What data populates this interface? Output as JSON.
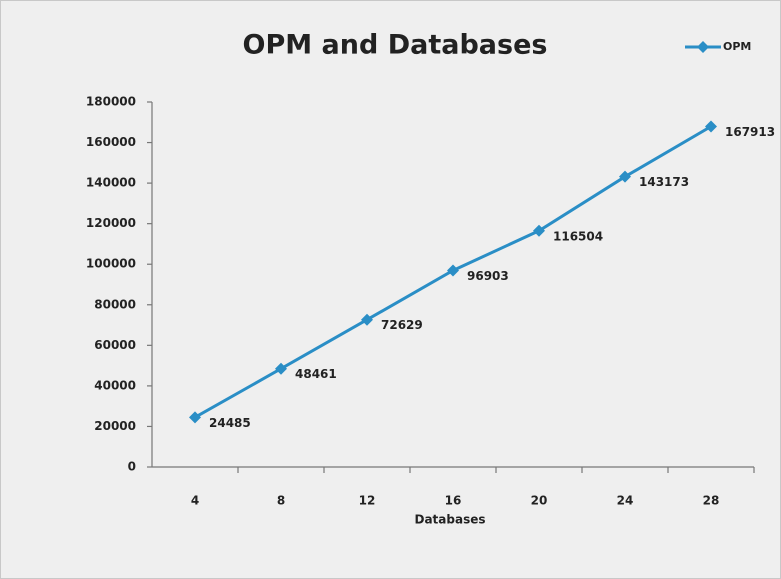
{
  "chart_data": {
    "type": "line",
    "title": "OPM and Databases",
    "x_label": "Databases",
    "categories": [
      "4",
      "8",
      "12",
      "16",
      "20",
      "24",
      "28"
    ],
    "series": [
      {
        "name": "OPM",
        "color": "#2a8ec6",
        "values": [
          24485,
          48461,
          72629,
          96903,
          116504,
          143173,
          167913
        ]
      }
    ],
    "ylim": [
      0,
      180000
    ],
    "yticks": [
      0,
      20000,
      40000,
      60000,
      80000,
      100000,
      120000,
      140000,
      160000,
      180000
    ],
    "legend": "top-right"
  }
}
